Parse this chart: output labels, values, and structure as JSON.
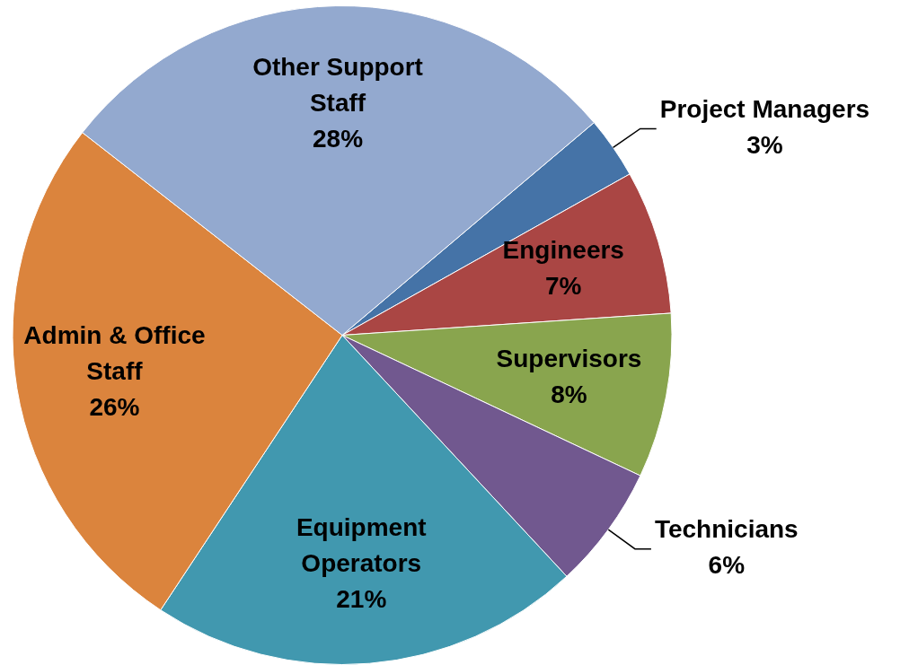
{
  "chart_data": {
    "type": "pie",
    "categories": [
      "Project Managers",
      "Engineers",
      "Supervisors",
      "Technicians",
      "Equipment Operators",
      "Admin & Office Staff",
      "Other Support Staff"
    ],
    "values": [
      3,
      7,
      8,
      6,
      21,
      26,
      28
    ],
    "value_labels": [
      "3%",
      "7%",
      "8%",
      "6%",
      "21%",
      "26%",
      "28%"
    ],
    "colors": [
      "#4573a7",
      "#aa4644",
      "#89a54e",
      "#71588f",
      "#4198af",
      "#db843d",
      "#93a9cf"
    ],
    "legend": false
  }
}
